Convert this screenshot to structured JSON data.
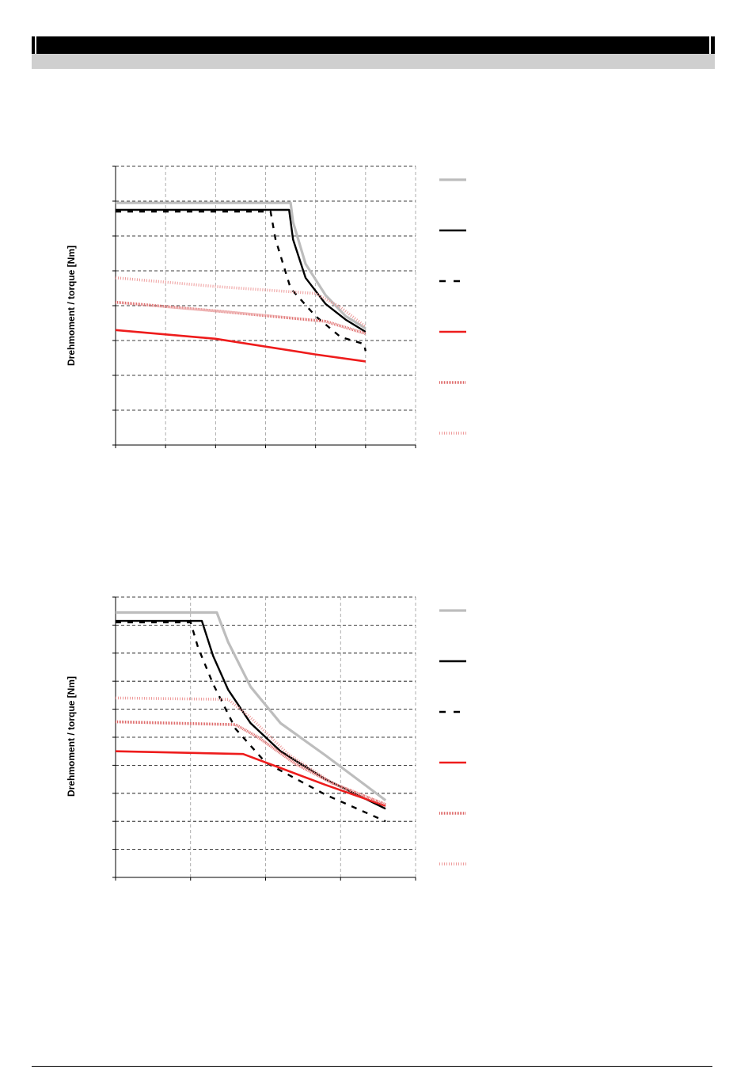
{
  "colors": {
    "header_black": "#000000",
    "header_grey": "#cfcfcf",
    "grey_curve": "#bdbdbd",
    "black_curve": "#000000",
    "red_curve": "#ee1c1c",
    "red_pattern_dense": "#dd6666",
    "red_pattern_light": "#ee9a9a"
  },
  "charts": [
    {
      "ylabel": "Drehmoment / torque [Nm]"
    },
    {
      "ylabel": "Drehmoment / torque [Nm]"
    }
  ],
  "chart_data": [
    {
      "type": "line",
      "title": "",
      "xlabel": "",
      "ylabel": "Drehmoment / torque [Nm]",
      "xlim": [
        0,
        6
      ],
      "ylim": [
        0,
        8
      ],
      "x_gridlines": 6,
      "y_gridlines": 8,
      "grid": true,
      "legend": "right",
      "series": [
        {
          "style": "grey-solid",
          "points": [
            [
              0,
              6.95
            ],
            [
              3.5,
              6.95
            ],
            [
              3.55,
              6.4
            ],
            [
              3.8,
              5.2
            ],
            [
              4.2,
              4.3
            ],
            [
              4.6,
              3.7
            ],
            [
              5.0,
              3.35
            ]
          ]
        },
        {
          "style": "black-solid",
          "points": [
            [
              0,
              6.75
            ],
            [
              3.47,
              6.75
            ],
            [
              3.55,
              5.9
            ],
            [
              3.8,
              4.8
            ],
            [
              4.2,
              4.05
            ],
            [
              4.6,
              3.6
            ],
            [
              5.0,
              3.25
            ]
          ]
        },
        {
          "style": "black-dashed",
          "points": [
            [
              0,
              6.7
            ],
            [
              3.1,
              6.7
            ],
            [
              3.2,
              5.9
            ],
            [
              3.5,
              4.5
            ],
            [
              4.0,
              3.7
            ],
            [
              4.5,
              3.1
            ],
            [
              4.97,
              2.9
            ],
            [
              5.0,
              2.7
            ]
          ]
        },
        {
          "style": "red-solid",
          "points": [
            [
              0,
              3.3
            ],
            [
              2.0,
              3.05
            ],
            [
              4.0,
              2.6
            ],
            [
              5.0,
              2.4
            ]
          ]
        },
        {
          "style": "red-dense",
          "points": [
            [
              0,
              4.1
            ],
            [
              2.0,
              3.85
            ],
            [
              4.2,
              3.55
            ],
            [
              5.0,
              3.2
            ]
          ]
        },
        {
          "style": "red-light",
          "points": [
            [
              0,
              4.8
            ],
            [
              2.0,
              4.55
            ],
            [
              4.0,
              4.35
            ],
            [
              4.5,
              3.95
            ],
            [
              5.0,
              3.4
            ]
          ]
        }
      ]
    },
    {
      "type": "line",
      "title": "",
      "xlabel": "",
      "ylabel": "Drehmoment / torque [Nm]",
      "xlim": [
        0,
        4
      ],
      "ylim": [
        0,
        10
      ],
      "x_gridlines": 4,
      "y_gridlines": 10,
      "grid": true,
      "legend": "right",
      "series": [
        {
          "style": "grey-solid",
          "points": [
            [
              0,
              9.45
            ],
            [
              1.35,
              9.45
            ],
            [
              1.5,
              8.4
            ],
            [
              1.8,
              6.8
            ],
            [
              2.2,
              5.5
            ],
            [
              2.8,
              4.35
            ],
            [
              3.6,
              2.75
            ]
          ]
        },
        {
          "style": "black-solid",
          "points": [
            [
              0,
              9.15
            ],
            [
              1.15,
              9.15
            ],
            [
              1.3,
              7.9
            ],
            [
              1.5,
              6.7
            ],
            [
              1.8,
              5.5
            ],
            [
              2.2,
              4.5
            ],
            [
              2.8,
              3.5
            ],
            [
              3.6,
              2.45
            ]
          ]
        },
        {
          "style": "black-dashed",
          "points": [
            [
              0,
              9.1
            ],
            [
              1.0,
              9.1
            ],
            [
              1.1,
              8.2
            ],
            [
              1.3,
              6.9
            ],
            [
              1.6,
              5.3
            ],
            [
              2.0,
              4.1
            ],
            [
              2.8,
              2.95
            ],
            [
              3.6,
              2.0
            ]
          ]
        },
        {
          "style": "red-solid",
          "points": [
            [
              0,
              4.5
            ],
            [
              1.7,
              4.4
            ],
            [
              2.2,
              3.9
            ],
            [
              2.8,
              3.3
            ],
            [
              3.6,
              2.55
            ]
          ]
        },
        {
          "style": "red-dense",
          "points": [
            [
              0,
              5.55
            ],
            [
              1.6,
              5.45
            ],
            [
              1.9,
              5.0
            ],
            [
              2.4,
              4.05
            ],
            [
              2.9,
              3.35
            ],
            [
              3.6,
              2.6
            ]
          ]
        },
        {
          "style": "red-light",
          "points": [
            [
              0,
              6.4
            ],
            [
              1.5,
              6.35
            ],
            [
              1.8,
              5.7
            ],
            [
              2.3,
              4.4
            ],
            [
              2.9,
              3.35
            ],
            [
              3.6,
              2.6
            ]
          ]
        }
      ]
    }
  ]
}
